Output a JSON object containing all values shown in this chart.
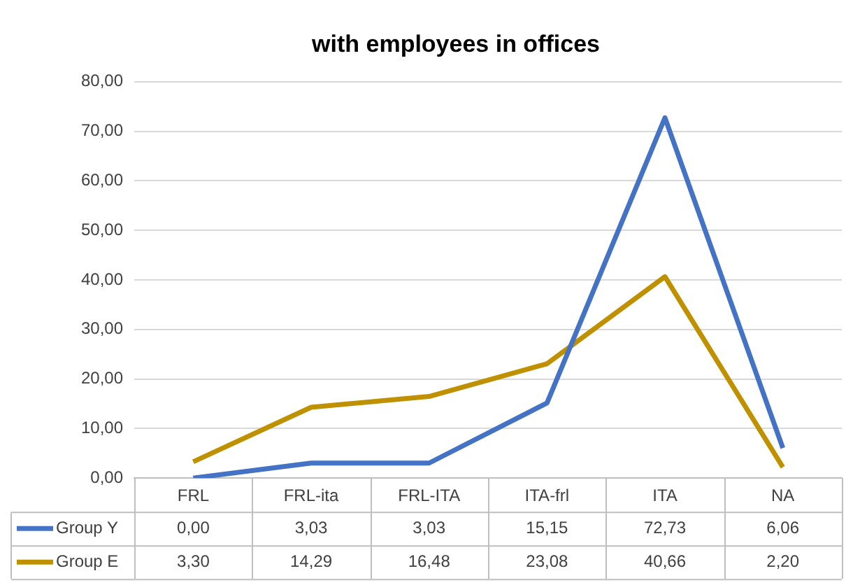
{
  "chart_data": {
    "type": "line",
    "title": "with employees in offices",
    "categories": [
      "FRL",
      "FRL-ita",
      "FRL-ITA",
      "ITA-frl",
      "ITA",
      "NA"
    ],
    "series": [
      {
        "name": "Group Y",
        "color": "#4472c4",
        "values": [
          0,
          3.03,
          3.03,
          15.15,
          72.73,
          6.06
        ],
        "value_labels": [
          "0,00",
          "3,03",
          "3,03",
          "15,15",
          "72,73",
          "6,06"
        ]
      },
      {
        "name": "Group E",
        "color": "#bf9000",
        "values": [
          3.3,
          14.29,
          16.48,
          23.08,
          40.66,
          2.2
        ],
        "value_labels": [
          "3,30",
          "14,29",
          "16,48",
          "23,08",
          "40,66",
          "2,20"
        ]
      }
    ],
    "ylim": [
      0,
      80
    ],
    "yticks": [
      {
        "value": 0,
        "label": "0,00"
      },
      {
        "value": 10,
        "label": "10,00"
      },
      {
        "value": 20,
        "label": "20,00"
      },
      {
        "value": 30,
        "label": "30,00"
      },
      {
        "value": 40,
        "label": "40,00"
      },
      {
        "value": 50,
        "label": "50,00"
      },
      {
        "value": 60,
        "label": "60,00"
      },
      {
        "value": 70,
        "label": "70,00"
      },
      {
        "value": 80,
        "label": "80,00"
      }
    ],
    "grid": "y",
    "legend": "bottom",
    "marker": "none",
    "line_style": "solid"
  }
}
